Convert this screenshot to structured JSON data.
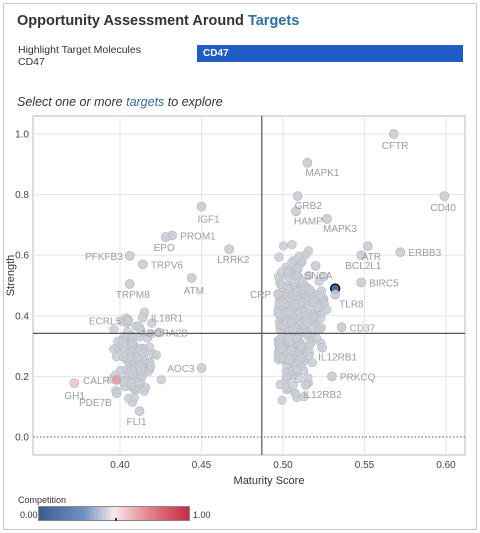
{
  "header": {
    "title_prefix": "Opportunity Assessment Around ",
    "title_accent": "Targets",
    "highlight_label": "Highlight Target Molecules",
    "highlight_value": "CD47",
    "highlight_selected": "CD47",
    "highlight_color": "#1f5cc4",
    "subtitle_prefix": "Select one or more ",
    "subtitle_accent": "targets",
    "subtitle_suffix": " to explore"
  },
  "legend": {
    "title": "Competition",
    "min_label": "0.00",
    "max_label": "1.00",
    "marker": 0.5,
    "colors": [
      "#3a5d8f",
      "#f5e8ea",
      "#c42a40"
    ]
  },
  "chart_data": {
    "type": "scatter",
    "xlabel": "Maturity Score",
    "ylabel": "Strength",
    "xlim": [
      0.36,
      0.605
    ],
    "ylim": [
      -0.03,
      1.05
    ],
    "x_ticks": [
      "0.40",
      "0.45",
      "0.50",
      "0.55",
      "0.60"
    ],
    "y_ticks": [
      "0.0",
      "0.2",
      "0.4",
      "0.6",
      "0.8",
      "1.0"
    ],
    "grid": true,
    "reference_lines": {
      "x": 0.487,
      "y": 0.342
    },
    "point_color": "#c9ccd3",
    "labeled_points": [
      {
        "label": "CFTR",
        "x": 0.568,
        "y": 1.0
      },
      {
        "label": "MAPK1",
        "x": 0.515,
        "y": 0.905
      },
      {
        "label": "CD40",
        "x": 0.599,
        "y": 0.795
      },
      {
        "label": "GRB2",
        "x": 0.509,
        "y": 0.795
      },
      {
        "label": "IGF1",
        "x": 0.45,
        "y": 0.76
      },
      {
        "label": "HAMP",
        "x": 0.508,
        "y": 0.745
      },
      {
        "label": "MAPK3",
        "x": 0.527,
        "y": 0.72
      },
      {
        "label": "PROM1",
        "x": 0.432,
        "y": 0.665
      },
      {
        "label": "EPO",
        "x": 0.428,
        "y": 0.66
      },
      {
        "label": "ATR",
        "x": 0.552,
        "y": 0.63
      },
      {
        "label": "ERBB3",
        "x": 0.572,
        "y": 0.61
      },
      {
        "label": "LRRK2",
        "x": 0.467,
        "y": 0.62
      },
      {
        "label": "PFKFB3",
        "x": 0.406,
        "y": 0.598
      },
      {
        "label": "BCL2L1",
        "x": 0.548,
        "y": 0.6
      },
      {
        "label": "TRPV6",
        "x": 0.414,
        "y": 0.57
      },
      {
        "label": "SNCA",
        "x": 0.52,
        "y": 0.565
      },
      {
        "label": "ATM",
        "x": 0.444,
        "y": 0.525
      },
      {
        "label": "BIRC5",
        "x": 0.548,
        "y": 0.51
      },
      {
        "label": "CRP",
        "x": 0.497,
        "y": 0.472
      },
      {
        "label": "TRPM8",
        "x": 0.406,
        "y": 0.505
      },
      {
        "label": "CD47",
        "x": 0.532,
        "y": 0.49,
        "highlighted": true
      },
      {
        "label": "TLR8",
        "x": 0.532,
        "y": 0.47
      },
      {
        "label": "IL18R1",
        "x": 0.414,
        "y": 0.395
      },
      {
        "label": "ECRL5",
        "x": 0.405,
        "y": 0.385
      },
      {
        "label": "ADORA2B",
        "x": 0.424,
        "y": 0.345
      },
      {
        "label": "CD37",
        "x": 0.536,
        "y": 0.362
      },
      {
        "label": "IL12RB1",
        "x": 0.524,
        "y": 0.295
      },
      {
        "label": "AOC3",
        "x": 0.45,
        "y": 0.228
      },
      {
        "label": "CALR",
        "x": 0.398,
        "y": 0.188,
        "color": "#e89aa2"
      },
      {
        "label": "GH1",
        "x": 0.372,
        "y": 0.178,
        "color": "#f2c6cb"
      },
      {
        "label": "PRKCQ",
        "x": 0.53,
        "y": 0.2
      },
      {
        "label": "PDE7B",
        "x": 0.398,
        "y": 0.145
      },
      {
        "label": "IL12RB2",
        "x": 0.514,
        "y": 0.172
      },
      {
        "label": "FLI1",
        "x": 0.412,
        "y": 0.085
      }
    ]
  }
}
